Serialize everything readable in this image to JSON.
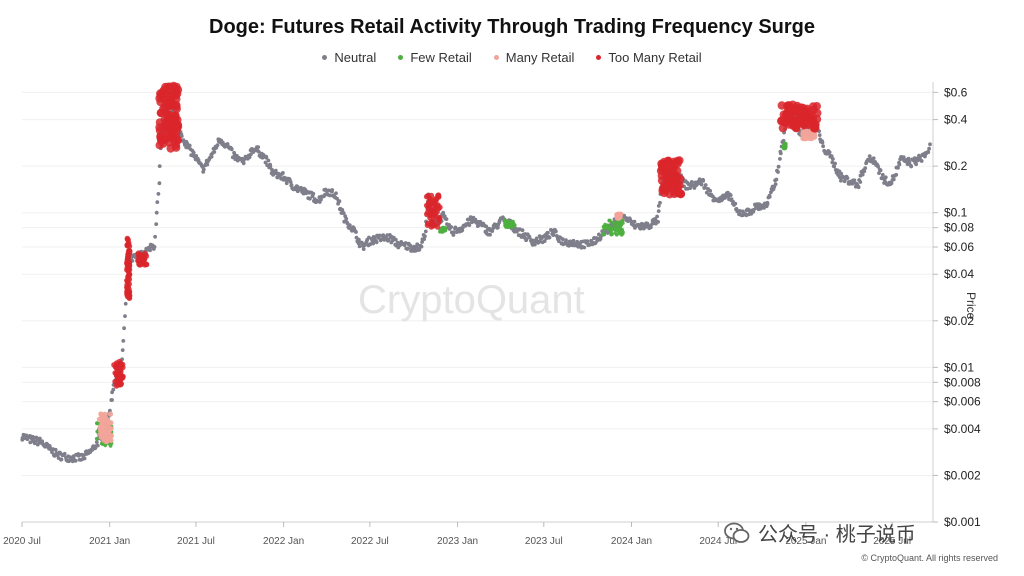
{
  "colors": {
    "neutral": "#7f7f8c",
    "few_retail": "#4caf3f",
    "many_retail": "#f2a49a",
    "too_many_retail": "#d9262c"
  },
  "watermark": "CryptoQuant",
  "copyright": "© CryptoQuant. All rights reserved",
  "wechat": {
    "text": "公众号 · 桃子说币",
    "icon": "wechat-icon"
  },
  "chart_data": {
    "type": "scatter",
    "title": "Doge: Futures Retail Activity Through Trading Frequency Surge",
    "legend": [
      "Neutral",
      "Few Retail",
      "Many Retail",
      "Too Many Retail"
    ],
    "legend_position": "top-center",
    "y_axis": {
      "label": "Price",
      "scale": "log",
      "range": [
        0.001,
        0.7
      ],
      "position": "right",
      "ticks": [
        "$0.6",
        "$0.4",
        "$0.2",
        "$0.1",
        "$0.08",
        "$0.06",
        "$0.04",
        "$0.02",
        "$0.01",
        "$0.008",
        "$0.006",
        "$0.004",
        "$0.002",
        "$0.001"
      ],
      "tick_values": [
        0.6,
        0.4,
        0.2,
        0.1,
        0.08,
        0.06,
        0.04,
        0.02,
        0.01,
        0.008,
        0.006,
        0.004,
        0.002,
        0.001
      ]
    },
    "x_axis": {
      "range": [
        "2020-07-01",
        "2025-10-01"
      ],
      "ticks": [
        "2020 Jul",
        "2021 Jan",
        "2021 Jul",
        "2022 Jan",
        "2022 Jul",
        "2023 Jan",
        "2023 Jul",
        "2024 Jan",
        "2024 Jul",
        "2025 Jan",
        "2025 Jul"
      ]
    },
    "grid": "horizontal",
    "price_series": [
      [
        "2020-07-01",
        0.0036
      ],
      [
        "2020-07-20",
        0.0034
      ],
      [
        "2020-08-10",
        0.0033
      ],
      [
        "2020-08-25",
        0.003
      ],
      [
        "2020-09-15",
        0.0027
      ],
      [
        "2020-10-10",
        0.0026
      ],
      [
        "2020-11-05",
        0.0026
      ],
      [
        "2020-11-25",
        0.0029
      ],
      [
        "2020-12-10",
        0.0034
      ],
      [
        "2020-12-25",
        0.0038
      ],
      [
        "2021-01-10",
        0.008
      ],
      [
        "2021-01-25",
        0.009
      ],
      [
        "2021-02-05",
        0.03
      ],
      [
        "2021-02-08",
        0.055
      ],
      [
        "2021-02-15",
        0.05
      ],
      [
        "2021-03-01",
        0.052
      ],
      [
        "2021-03-20",
        0.056
      ],
      [
        "2021-04-05",
        0.062
      ],
      [
        "2021-04-15",
        0.15
      ],
      [
        "2021-04-20",
        0.32
      ],
      [
        "2021-05-01",
        0.4
      ],
      [
        "2021-05-08",
        0.6
      ],
      [
        "2021-05-15",
        0.45
      ],
      [
        "2021-05-25",
        0.35
      ],
      [
        "2021-06-10",
        0.28
      ],
      [
        "2021-06-25",
        0.24
      ],
      [
        "2021-07-15",
        0.19
      ],
      [
        "2021-08-05",
        0.24
      ],
      [
        "2021-08-20",
        0.3
      ],
      [
        "2021-09-05",
        0.27
      ],
      [
        "2021-09-20",
        0.23
      ],
      [
        "2021-10-10",
        0.21
      ],
      [
        "2021-10-28",
        0.26
      ],
      [
        "2021-11-10",
        0.25
      ],
      [
        "2021-11-25",
        0.22
      ],
      [
        "2021-12-10",
        0.18
      ],
      [
        "2022-01-01",
        0.17
      ],
      [
        "2022-01-20",
        0.15
      ],
      [
        "2022-02-05",
        0.14
      ],
      [
        "2022-02-25",
        0.13
      ],
      [
        "2022-03-15",
        0.12
      ],
      [
        "2022-04-01",
        0.14
      ],
      [
        "2022-04-20",
        0.13
      ],
      [
        "2022-05-10",
        0.09
      ],
      [
        "2022-05-25",
        0.08
      ],
      [
        "2022-06-15",
        0.06
      ],
      [
        "2022-07-01",
        0.066
      ],
      [
        "2022-07-20",
        0.068
      ],
      [
        "2022-08-10",
        0.069
      ],
      [
        "2022-09-01",
        0.062
      ],
      [
        "2022-09-25",
        0.06
      ],
      [
        "2022-10-15",
        0.059
      ],
      [
        "2022-10-26",
        0.077
      ],
      [
        "2022-11-01",
        0.13
      ],
      [
        "2022-11-05",
        0.1
      ],
      [
        "2022-11-15",
        0.085
      ],
      [
        "2022-12-01",
        0.095
      ],
      [
        "2022-12-20",
        0.075
      ],
      [
        "2023-01-10",
        0.08
      ],
      [
        "2023-02-01",
        0.09
      ],
      [
        "2023-02-15",
        0.085
      ],
      [
        "2023-03-10",
        0.075
      ],
      [
        "2023-04-05",
        0.09
      ],
      [
        "2023-04-20",
        0.085
      ],
      [
        "2023-05-10",
        0.075
      ],
      [
        "2023-06-10",
        0.065
      ],
      [
        "2023-07-01",
        0.068
      ],
      [
        "2023-07-20",
        0.075
      ],
      [
        "2023-08-10",
        0.065
      ],
      [
        "2023-09-01",
        0.064
      ],
      [
        "2023-09-25",
        0.062
      ],
      [
        "2023-10-15",
        0.065
      ],
      [
        "2023-11-05",
        0.076
      ],
      [
        "2023-11-20",
        0.08
      ],
      [
        "2023-12-05",
        0.095
      ],
      [
        "2023-12-20",
        0.092
      ],
      [
        "2024-01-10",
        0.082
      ],
      [
        "2024-02-05",
        0.082
      ],
      [
        "2024-02-25",
        0.09
      ],
      [
        "2024-03-05",
        0.15
      ],
      [
        "2024-03-28",
        0.2
      ],
      [
        "2024-04-10",
        0.17
      ],
      [
        "2024-04-25",
        0.15
      ],
      [
        "2024-05-10",
        0.15
      ],
      [
        "2024-05-28",
        0.16
      ],
      [
        "2024-06-15",
        0.13
      ],
      [
        "2024-07-05",
        0.12
      ],
      [
        "2024-07-25",
        0.13
      ],
      [
        "2024-08-10",
        0.1
      ],
      [
        "2024-09-01",
        0.1
      ],
      [
        "2024-09-20",
        0.11
      ],
      [
        "2024-10-10",
        0.11
      ],
      [
        "2024-10-30",
        0.16
      ],
      [
        "2024-11-10",
        0.25
      ],
      [
        "2024-11-20",
        0.38
      ],
      [
        "2024-12-05",
        0.45
      ],
      [
        "2024-12-20",
        0.33
      ],
      [
        "2025-01-10",
        0.36
      ],
      [
        "2025-01-20",
        0.39
      ],
      [
        "2025-02-05",
        0.27
      ],
      [
        "2025-02-25",
        0.22
      ],
      [
        "2025-03-15",
        0.17
      ],
      [
        "2025-04-05",
        0.16
      ],
      [
        "2025-04-20",
        0.15
      ],
      [
        "2025-05-10",
        0.22
      ],
      [
        "2025-05-25",
        0.22
      ],
      [
        "2025-06-15",
        0.16
      ],
      [
        "2025-07-01",
        0.16
      ],
      [
        "2025-07-20",
        0.22
      ],
      [
        "2025-08-10",
        0.21
      ],
      [
        "2025-08-25",
        0.22
      ],
      [
        "2025-09-10",
        0.24
      ],
      [
        "2025-09-20",
        0.27
      ]
    ],
    "retail_events": [
      {
        "category": "Too Many Retail",
        "start": "2021-01-10",
        "end": "2021-01-30",
        "low": 0.0075,
        "high": 0.011
      },
      {
        "category": "Too Many Retail",
        "start": "2021-02-06",
        "end": "2021-02-12",
        "low": 0.028,
        "high": 0.07
      },
      {
        "category": "Too Many Retail",
        "start": "2021-03-01",
        "end": "2021-03-20",
        "low": 0.046,
        "high": 0.055
      },
      {
        "category": "Too Many Retail",
        "start": "2021-04-15",
        "end": "2021-05-25",
        "low": 0.26,
        "high": 0.66
      },
      {
        "category": "Too Many Retail",
        "start": "2022-10-28",
        "end": "2022-11-25",
        "low": 0.08,
        "high": 0.13
      },
      {
        "category": "Too Many Retail",
        "start": "2024-03-01",
        "end": "2024-04-15",
        "low": 0.13,
        "high": 0.22
      },
      {
        "category": "Too Many Retail",
        "start": "2024-11-10",
        "end": "2025-01-25",
        "low": 0.35,
        "high": 0.5
      },
      {
        "category": "Many Retail",
        "start": "2020-12-10",
        "end": "2021-01-05",
        "low": 0.0033,
        "high": 0.005
      },
      {
        "category": "Many Retail",
        "start": "2024-12-25",
        "end": "2025-01-20",
        "low": 0.3,
        "high": 0.34
      },
      {
        "category": "Many Retail",
        "start": "2023-12-01",
        "end": "2023-12-10",
        "low": 0.092,
        "high": 0.098
      },
      {
        "category": "Few Retail",
        "start": "2020-12-05",
        "end": "2021-01-05",
        "low": 0.0031,
        "high": 0.0045
      },
      {
        "category": "Few Retail",
        "start": "2022-11-25",
        "end": "2022-12-10",
        "low": 0.075,
        "high": 0.08
      },
      {
        "category": "Few Retail",
        "start": "2023-04-10",
        "end": "2023-05-01",
        "low": 0.08,
        "high": 0.09
      },
      {
        "category": "Few Retail",
        "start": "2023-11-01",
        "end": "2023-12-15",
        "low": 0.072,
        "high": 0.09
      },
      {
        "category": "Few Retail",
        "start": "2024-11-15",
        "end": "2024-11-20",
        "low": 0.26,
        "high": 0.28
      }
    ]
  }
}
